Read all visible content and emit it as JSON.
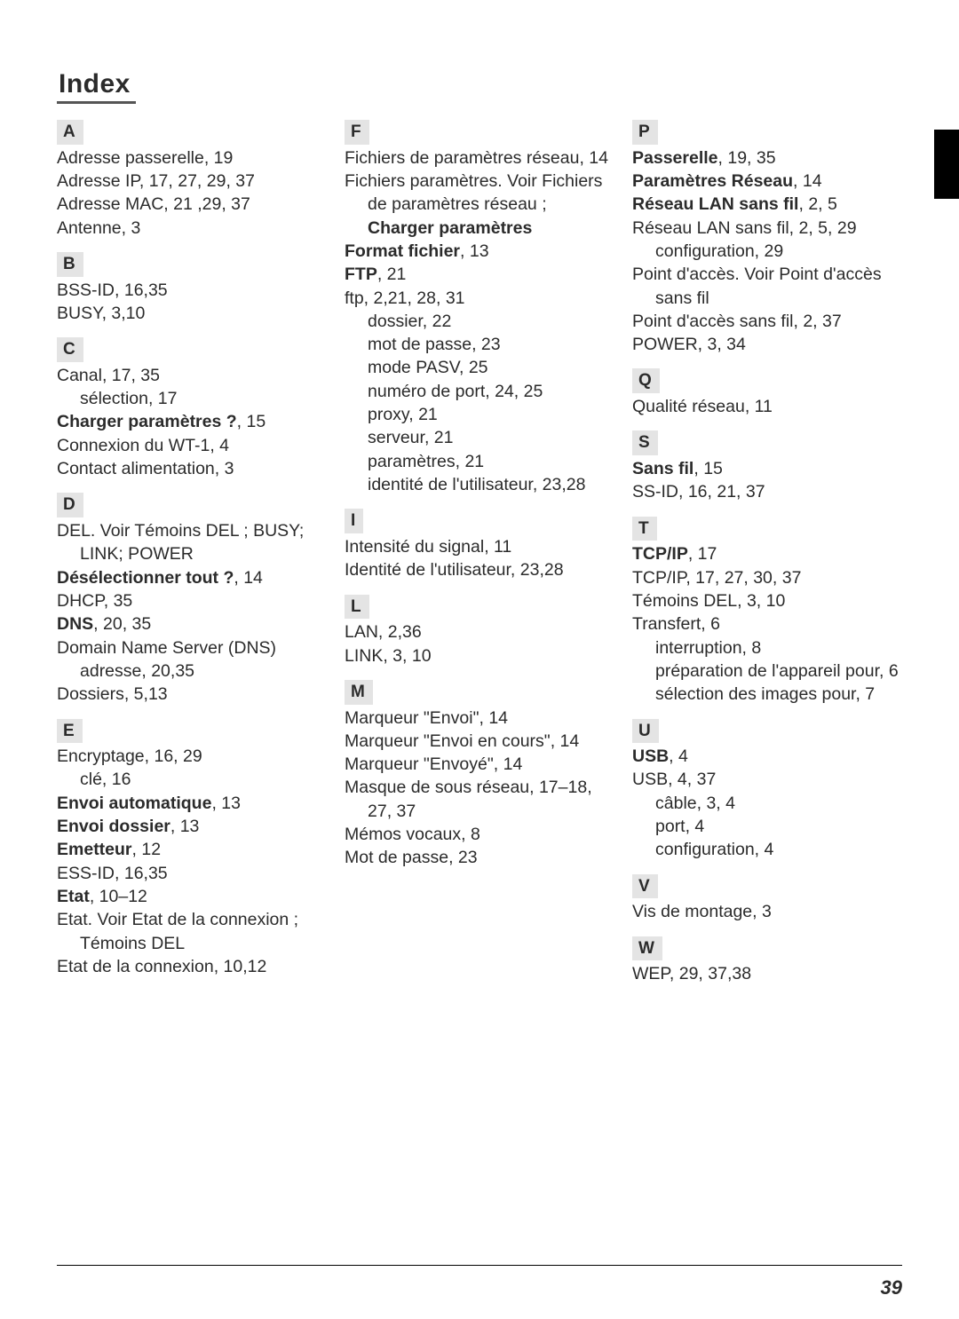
{
  "page": {
    "title": "Index",
    "number": "39"
  },
  "columns": [
    {
      "sections": [
        {
          "letter": "A",
          "first": true,
          "entries": [
            {
              "segs": [
                "Adresse passerelle, 19"
              ]
            },
            {
              "segs": [
                "Adresse IP, 17, 27, 29, 37"
              ]
            },
            {
              "segs": [
                "Adresse MAC, 21 ,29, 37"
              ]
            },
            {
              "segs": [
                "Antenne, 3"
              ]
            }
          ]
        },
        {
          "letter": "B",
          "entries": [
            {
              "segs": [
                "BSS-ID, 16,35"
              ]
            },
            {
              "segs": [
                "BUSY, 3,10"
              ]
            }
          ]
        },
        {
          "letter": "C",
          "entries": [
            {
              "segs": [
                "Canal, 17, 35"
              ]
            },
            {
              "indent": 1,
              "segs": [
                "sélection, 17"
              ]
            },
            {
              "segs": [
                {
                  "b": true,
                  "t": "Charger paramètres ?"
                },
                ", 15"
              ]
            },
            {
              "segs": [
                "Connexion du WT-1, 4"
              ]
            },
            {
              "segs": [
                "Contact alimentation, 3"
              ]
            }
          ]
        },
        {
          "letter": "D",
          "entries": [
            {
              "hang": true,
              "segs": [
                "DEL. Voir Témoins DEL ; BUSY; LINK; POWER"
              ]
            },
            {
              "segs": [
                {
                  "b": true,
                  "t": "Désélectionner tout ?"
                },
                ", 14"
              ]
            },
            {
              "segs": [
                "DHCP, 35"
              ]
            },
            {
              "segs": [
                {
                  "b": true,
                  "t": "DNS"
                },
                ", 20, 35"
              ]
            },
            {
              "hang": true,
              "segs": [
                "Domain Name Server (DNS) adresse, 20,35"
              ]
            },
            {
              "segs": [
                "Dossiers, 5,13"
              ]
            }
          ]
        },
        {
          "letter": "E",
          "entries": [
            {
              "segs": [
                "Encryptage, 16, 29"
              ]
            },
            {
              "indent": 1,
              "segs": [
                "clé, 16"
              ]
            },
            {
              "segs": [
                {
                  "b": true,
                  "t": "Envoi automatique"
                },
                ", 13"
              ]
            },
            {
              "segs": [
                {
                  "b": true,
                  "t": "Envoi dossier"
                },
                ", 13"
              ]
            },
            {
              "segs": [
                {
                  "b": true,
                  "t": "Emetteur"
                },
                ", 12"
              ]
            },
            {
              "segs": [
                "ESS-ID, 16,35"
              ]
            },
            {
              "segs": [
                {
                  "b": true,
                  "t": "Etat"
                },
                ", 10–12"
              ]
            },
            {
              "hang": true,
              "segs": [
                "Etat. Voir Etat de la connexion ; Témoins DEL"
              ]
            },
            {
              "segs": [
                "Etat de la connexion, 10,12"
              ]
            }
          ]
        }
      ]
    },
    {
      "sections": [
        {
          "letter": "F",
          "first": true,
          "entries": [
            {
              "hang": true,
              "segs": [
                "Fichiers de paramètres réseau, 14"
              ]
            },
            {
              "hang": true,
              "segs": [
                "Fichiers paramètres. Voir Fichiers de paramètres réseau ; ",
                {
                  "b": true,
                  "t": "Charger paramètres"
                }
              ]
            },
            {
              "segs": [
                {
                  "b": true,
                  "t": "Format fichier"
                },
                ", 13"
              ]
            },
            {
              "segs": [
                {
                  "b": true,
                  "t": "FTP"
                },
                ", 21"
              ]
            },
            {
              "segs": [
                "ftp, 2,21, 28, 31"
              ]
            },
            {
              "indent": 1,
              "segs": [
                "dossier, 22"
              ]
            },
            {
              "indent": 1,
              "segs": [
                "mot de passe, 23"
              ]
            },
            {
              "indent": 1,
              "segs": [
                "mode PASV, 25"
              ]
            },
            {
              "indent": 1,
              "segs": [
                "numéro de port, 24, 25"
              ]
            },
            {
              "indent": 1,
              "segs": [
                "proxy, 21"
              ]
            },
            {
              "indent": 1,
              "segs": [
                "serveur, 21"
              ]
            },
            {
              "indent": 1,
              "segs": [
                "paramètres, 21"
              ]
            },
            {
              "indent": 1,
              "hang": true,
              "segs": [
                "identité de l'utilisateur, 23,28"
              ]
            }
          ]
        },
        {
          "letter": "I",
          "entries": [
            {
              "segs": [
                "Intensité du signal, 11"
              ]
            },
            {
              "segs": [
                "Identité de l'utilisateur, 23,28"
              ]
            }
          ]
        },
        {
          "letter": "L",
          "entries": [
            {
              "segs": [
                "LAN, 2,36"
              ]
            },
            {
              "segs": [
                "LINK, 3, 10"
              ]
            }
          ]
        },
        {
          "letter": "M",
          "entries": [
            {
              "segs": [
                "Marqueur \"Envoi\", 14"
              ]
            },
            {
              "segs": [
                "Marqueur \"Envoi en cours\", 14"
              ]
            },
            {
              "segs": [
                "Marqueur \"Envoyé\", 14"
              ]
            },
            {
              "hang": true,
              "segs": [
                "Masque de sous réseau, 17–18, 27, 37"
              ]
            },
            {
              "segs": [
                "Mémos vocaux, 8"
              ]
            },
            {
              "segs": [
                "Mot de passe, 23"
              ]
            }
          ]
        }
      ]
    },
    {
      "sections": [
        {
          "letter": "P",
          "first": true,
          "entries": [
            {
              "segs": [
                {
                  "b": true,
                  "t": "Passerelle"
                },
                ", 19, 35"
              ]
            },
            {
              "segs": [
                {
                  "b": true,
                  "t": "Paramètres Réseau"
                },
                ", 14"
              ]
            },
            {
              "segs": [
                {
                  "b": true,
                  "t": "Réseau LAN sans fil"
                },
                ", 2, 5"
              ]
            },
            {
              "segs": [
                "Réseau LAN sans fil, 2, 5, 29"
              ]
            },
            {
              "indent": 1,
              "segs": [
                "configuration, 29"
              ]
            },
            {
              "hang": true,
              "segs": [
                "Point d'accès. Voir Point d'accès sans fil"
              ]
            },
            {
              "segs": [
                "Point d'accès sans fil, 2, 37"
              ]
            },
            {
              "segs": [
                "POWER, 3, 34"
              ]
            }
          ]
        },
        {
          "letter": "Q",
          "entries": [
            {
              "segs": [
                "Qualité réseau, 11"
              ]
            }
          ]
        },
        {
          "letter": "S",
          "entries": [
            {
              "segs": [
                {
                  "b": true,
                  "t": "Sans fil"
                },
                ", 15"
              ]
            },
            {
              "segs": [
                "SS-ID, 16, 21, 37"
              ]
            }
          ]
        },
        {
          "letter": "T",
          "entries": [
            {
              "segs": [
                {
                  "b": true,
                  "t": "TCP/IP"
                },
                ", 17"
              ]
            },
            {
              "segs": [
                "TCP/IP, 17, 27, 30, 37"
              ]
            },
            {
              "segs": [
                "Témoins DEL, 3, 10"
              ]
            },
            {
              "segs": [
                "Transfert, 6"
              ]
            },
            {
              "indent": 1,
              "segs": [
                "interruption, 8"
              ]
            },
            {
              "indent": 1,
              "hang": true,
              "segs": [
                "préparation de l'appareil pour, 6"
              ]
            },
            {
              "indent": 1,
              "segs": [
                "sélection des images pour, 7"
              ]
            }
          ]
        },
        {
          "letter": "U",
          "entries": [
            {
              "segs": [
                {
                  "b": true,
                  "t": "USB"
                },
                ", 4"
              ]
            },
            {
              "segs": [
                "USB, 4, 37"
              ]
            },
            {
              "indent": 1,
              "segs": [
                "câble, 3, 4"
              ]
            },
            {
              "indent": 1,
              "segs": [
                "port, 4"
              ]
            },
            {
              "indent": 1,
              "segs": [
                "configuration, 4"
              ]
            }
          ]
        },
        {
          "letter": "V",
          "entries": [
            {
              "segs": [
                "Vis de montage, 3"
              ]
            }
          ]
        },
        {
          "letter": "W",
          "entries": [
            {
              "segs": [
                "WEP, 29, 37,38"
              ]
            }
          ]
        }
      ]
    }
  ]
}
